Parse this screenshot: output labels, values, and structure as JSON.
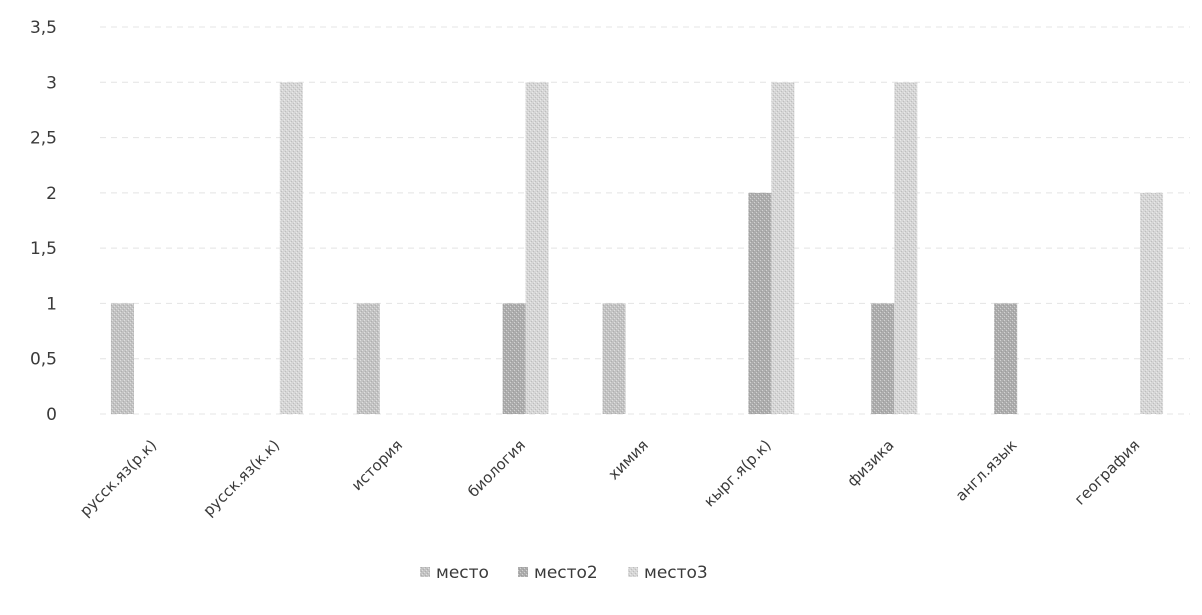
{
  "chart_data": {
    "type": "bar",
    "categories": [
      "русск.яз(р.к)",
      "русск.яз(к.к)",
      "история",
      "биология",
      "химия",
      "кырг.я(р.к)",
      "физика",
      "англ.язык",
      "география"
    ],
    "series": [
      {
        "name": "место",
        "values": [
          1,
          null,
          1,
          null,
          1,
          null,
          null,
          null,
          null
        ]
      },
      {
        "name": "место2",
        "values": [
          null,
          null,
          null,
          1,
          null,
          2,
          1,
          1,
          null
        ]
      },
      {
        "name": "место3",
        "values": [
          null,
          3,
          null,
          3,
          null,
          3,
          3,
          null,
          2
        ]
      }
    ],
    "y_ticks": [
      "0",
      "0,5",
      "1",
      "1,5",
      "2",
      "2,5",
      "3",
      "3,5"
    ],
    "ylim": [
      0,
      3.5
    ],
    "grid": true,
    "legend": "bottom",
    "colors": {
      "место": "#c3c3c3",
      "место2": "#adadad",
      "место3": "#d6d6d6",
      "text": "#3a3a3a"
    }
  }
}
